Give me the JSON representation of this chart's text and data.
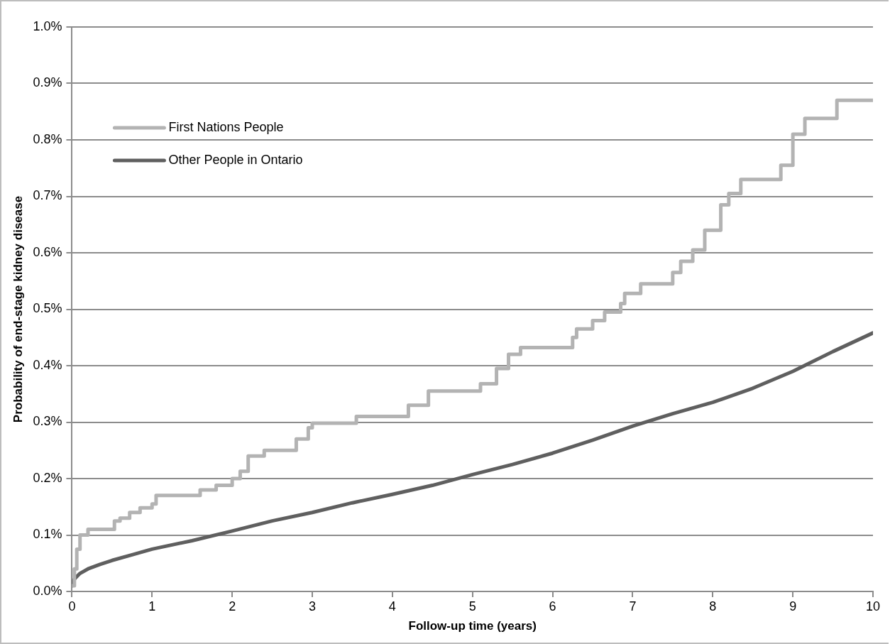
{
  "chart_data": {
    "type": "line",
    "xlabel": "Follow-up time (years)",
    "ylabel": "Probability of end-stage kidney disease",
    "xlim": [
      0,
      10
    ],
    "xticks": [
      0,
      1,
      2,
      3,
      4,
      5,
      6,
      7,
      8,
      9,
      10
    ],
    "ylim": [
      0,
      1.0
    ],
    "yticks": [
      {
        "value": 0,
        "label": "0.0%"
      },
      {
        "value": 0.1,
        "label": "0.1%"
      },
      {
        "value": 0.2,
        "label": "0.2%"
      },
      {
        "value": 0.3,
        "label": "0.3%"
      },
      {
        "value": 0.4,
        "label": "0.4%"
      },
      {
        "value": 0.5,
        "label": "0.5%"
      },
      {
        "value": 0.6,
        "label": "0.6%"
      },
      {
        "value": 0.7,
        "label": "0.7%"
      },
      {
        "value": 0.8,
        "label": "0.8%"
      },
      {
        "value": 0.9,
        "label": "0.9%"
      },
      {
        "value": 1.0,
        "label": "1.0%"
      }
    ],
    "grid": "y",
    "legend": "top left",
    "marker": "none",
    "series": [
      {
        "name": "First Nations People",
        "type": "step",
        "color": "#b3b3b3",
        "x": [
          0,
          0.03,
          0.06,
          0.1,
          0.2,
          0.53,
          0.6,
          0.72,
          0.85,
          1.0,
          1.05,
          1.6,
          1.8,
          2.0,
          2.1,
          2.2,
          2.4,
          2.8,
          2.95,
          3.0,
          3.55,
          4.2,
          4.45,
          5.1,
          5.3,
          5.45,
          5.6,
          6.25,
          6.3,
          6.5,
          6.65,
          6.85,
          6.9,
          7.1,
          7.5,
          7.6,
          7.75,
          7.9,
          8.1,
          8.2,
          8.35,
          8.85,
          9.0,
          9.15,
          9.55,
          10
        ],
        "values": [
          0.01,
          0.04,
          0.075,
          0.1,
          0.11,
          0.125,
          0.13,
          0.14,
          0.148,
          0.155,
          0.17,
          0.18,
          0.188,
          0.2,
          0.213,
          0.24,
          0.25,
          0.27,
          0.29,
          0.298,
          0.31,
          0.33,
          0.355,
          0.368,
          0.395,
          0.42,
          0.432,
          0.45,
          0.465,
          0.48,
          0.495,
          0.51,
          0.528,
          0.545,
          0.565,
          0.585,
          0.605,
          0.64,
          0.685,
          0.705,
          0.73,
          0.755,
          0.81,
          0.838,
          0.87,
          0.87
        ]
      },
      {
        "name": "Other People in Ontario",
        "type": "line",
        "color": "#5f5f5f",
        "x": [
          0,
          0.02,
          0.05,
          0.1,
          0.2,
          0.35,
          0.5,
          0.75,
          1,
          1.5,
          2,
          2.5,
          3,
          3.5,
          4,
          4.5,
          5,
          5.5,
          6,
          6.5,
          7,
          7.5,
          8,
          8.5,
          9,
          9.5,
          10
        ],
        "values": [
          0.01,
          0.02,
          0.025,
          0.032,
          0.04,
          0.048,
          0.055,
          0.065,
          0.075,
          0.09,
          0.107,
          0.125,
          0.14,
          0.157,
          0.172,
          0.188,
          0.207,
          0.225,
          0.245,
          0.268,
          0.293,
          0.315,
          0.335,
          0.36,
          0.39,
          0.425,
          0.458
        ]
      }
    ]
  }
}
